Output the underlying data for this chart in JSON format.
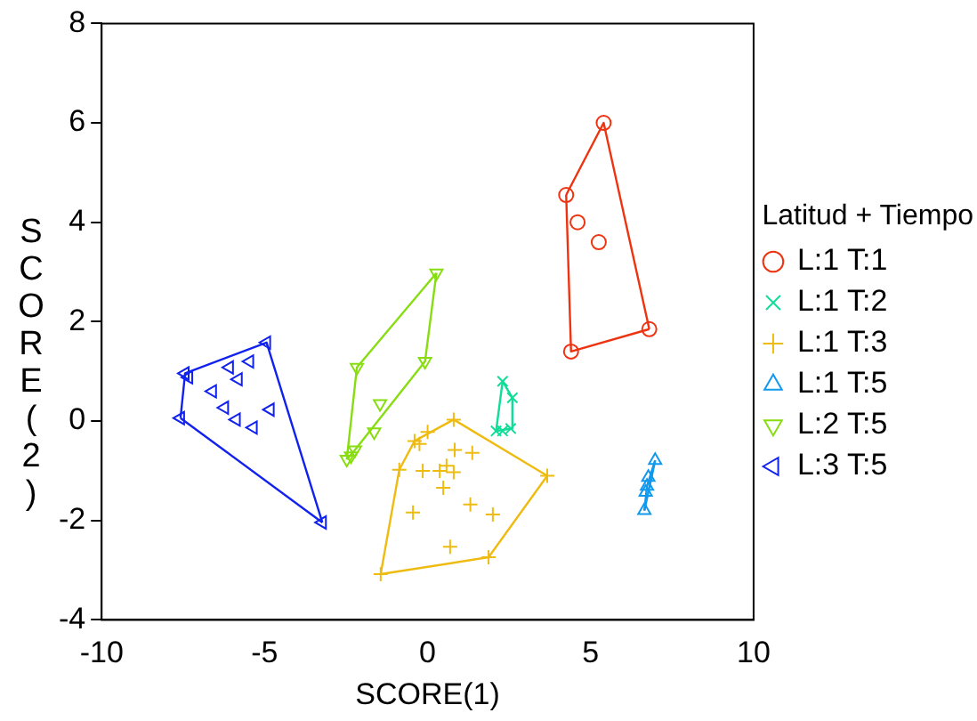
{
  "chart_data": {
    "type": "scatter",
    "xlabel": "SCORE(1)",
    "ylabel": "SCORE(2)",
    "legend_title": "Latitud + Tiempo",
    "legend": "right",
    "grid": false,
    "xlim": [
      -10,
      10
    ],
    "xticks": [
      -10,
      -5,
      0,
      5,
      10
    ],
    "ylim": [
      -4,
      8
    ],
    "yticks": [
      -4,
      -2,
      0,
      2,
      4,
      6,
      8
    ],
    "series": [
      {
        "name": "L:1 T:1",
        "color": "#ee3311",
        "marker": "circle",
        "x": [
          5.4,
          4.25,
          4.6,
          5.25,
          6.8,
          4.4
        ],
        "values": [
          6.0,
          4.55,
          4.0,
          3.6,
          1.85,
          1.4
        ]
      },
      {
        "name": "L:1 T:2",
        "color": "#11dd99",
        "marker": "x",
        "x": [
          2.3,
          2.6,
          2.3,
          2.55,
          2.1
        ],
        "values": [
          0.8,
          0.47,
          -0.2,
          -0.15,
          -0.2
        ]
      },
      {
        "name": "L:1 T:3",
        "color": "#eebb11",
        "marker": "cross",
        "x": [
          0.8,
          -0.4,
          0,
          -0.25,
          0.83,
          1.37,
          -0.87,
          -0.15,
          0.37,
          0.58,
          0.8,
          0.48,
          3.67,
          -0.45,
          1.31,
          2.0,
          0.69,
          1.87,
          -1.44
        ],
        "values": [
          0.03,
          -0.4,
          -0.22,
          -0.46,
          -0.58,
          -0.64,
          -0.98,
          -1.0,
          -1.0,
          -0.9,
          -1.03,
          -1.34,
          -1.1,
          -1.84,
          -1.68,
          -1.88,
          -2.53,
          -2.74,
          -3.08
        ]
      },
      {
        "name": "L:1 T:5",
        "color": "#1199ee",
        "marker": "triangle",
        "x": [
          6.98,
          6.77,
          6.69,
          6.65,
          6.73
        ],
        "values": [
          -0.79,
          -1.13,
          -1.43,
          -1.8,
          -1.31
        ]
      },
      {
        "name": "L:2 T:5",
        "color": "#88dd11",
        "marker": "triangle-down",
        "x": [
          0.27,
          -2.17,
          -0.08,
          -1.46,
          -1.64,
          -2.23,
          -2.48,
          -2.35
        ],
        "values": [
          2.98,
          1.08,
          1.2,
          0.35,
          -0.22,
          -0.58,
          -0.77,
          -0.7
        ]
      },
      {
        "name": "L:3 T:5",
        "color": "#1122ee",
        "marker": "triangle-left",
        "x": [
          -4.94,
          -7.44,
          -7.33,
          -6.08,
          -5.46,
          -5.81,
          -6.6,
          -6.23,
          -4.83,
          -5.87,
          -5.35,
          -7.58,
          -3.23
        ],
        "values": [
          1.58,
          0.96,
          0.88,
          1.08,
          1.2,
          0.84,
          0.6,
          0.27,
          0.23,
          0.03,
          -0.13,
          0.06,
          -2.04
        ]
      },
      {
        "type": "line",
        "color": "#ee3311",
        "marker": "none",
        "x": [
          4.25,
          5.4,
          6.8
        ],
        "values": [
          4.55,
          6.0,
          1.85
        ]
      },
      {
        "type": "line",
        "color": "#ee3311",
        "marker": "none",
        "x": [
          4.25,
          4.4,
          6.8
        ],
        "values": [
          4.55,
          1.4,
          1.85
        ]
      },
      {
        "type": "line",
        "color": "#11dd99",
        "marker": "none",
        "x": [
          2.1,
          2.3,
          2.6
        ],
        "values": [
          -0.2,
          0.8,
          0.47
        ]
      },
      {
        "type": "line",
        "color": "#11dd99",
        "marker": "none",
        "x": [
          2.1,
          2.55,
          2.6
        ],
        "values": [
          -0.2,
          -0.15,
          0.47
        ]
      },
      {
        "type": "line",
        "color": "#eebb11",
        "marker": "none",
        "x": [
          -1.44,
          -0.87,
          -0.4,
          0.8,
          3.67
        ],
        "values": [
          -3.08,
          -0.98,
          -0.4,
          0.03,
          -1.1
        ]
      },
      {
        "type": "line",
        "color": "#eebb11",
        "marker": "none",
        "x": [
          -1.44,
          1.87,
          3.67
        ],
        "values": [
          -3.08,
          -2.74,
          -1.1
        ]
      },
      {
        "type": "line",
        "color": "#1199ee",
        "marker": "none",
        "x": [
          6.65,
          6.98
        ],
        "values": [
          -1.8,
          -0.79
        ]
      },
      {
        "type": "line",
        "color": "#1199ee",
        "marker": "none",
        "x": [
          6.65,
          6.73,
          6.98
        ],
        "values": [
          -1.8,
          -1.31,
          -0.79
        ]
      },
      {
        "type": "line",
        "color": "#88dd11",
        "marker": "none",
        "x": [
          -2.48,
          -2.17,
          0.27
        ],
        "values": [
          -0.77,
          1.08,
          2.98
        ]
      },
      {
        "type": "line",
        "color": "#88dd11",
        "marker": "none",
        "x": [
          -2.48,
          -2.23,
          -0.08,
          0.27
        ],
        "values": [
          -0.77,
          -0.58,
          1.2,
          2.98
        ]
      },
      {
        "type": "line",
        "color": "#1122ee",
        "marker": "none",
        "x": [
          -7.58,
          -7.44,
          -4.94,
          -3.23
        ],
        "values": [
          0.06,
          0.96,
          1.58,
          -2.04
        ]
      },
      {
        "type": "line",
        "color": "#1122ee",
        "marker": "none",
        "x": [
          -7.58,
          -3.23
        ],
        "values": [
          0.06,
          -2.04
        ]
      }
    ]
  }
}
